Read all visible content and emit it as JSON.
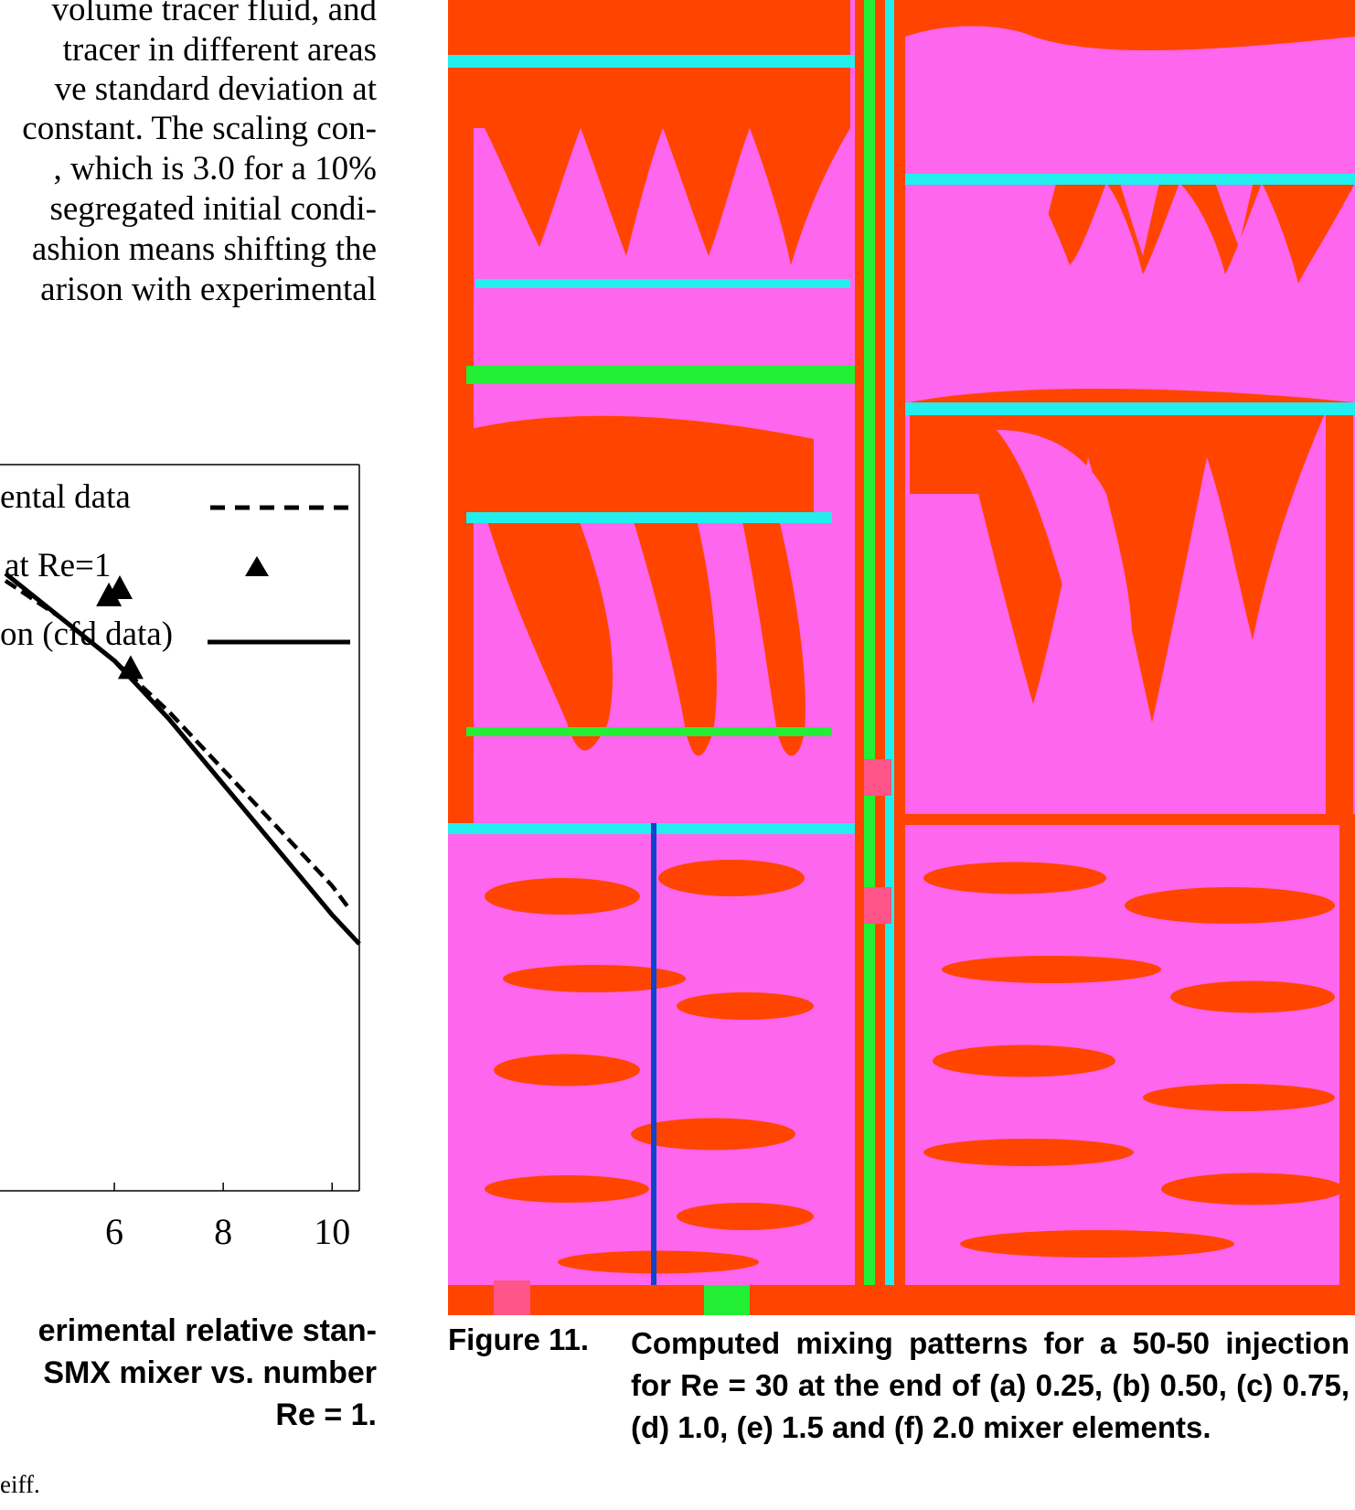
{
  "body_text": {
    "lines": [
      "volume tracer fluid, and",
      "tracer in different areas",
      "ve standard deviation at",
      "constant. The scaling con-",
      ", which is 3.0 for a 10%",
      "segregated initial condi-",
      "ashion means shifting the",
      "arison with experimental"
    ]
  },
  "chart_data": {
    "type": "line",
    "title": "",
    "xlabel": "",
    "ylabel": "",
    "xlim": [
      3.9,
      10.5
    ],
    "x_ticks": [
      6,
      8,
      10
    ],
    "x_tick_labels": [
      "6",
      "8",
      "10"
    ],
    "grid": false,
    "legend_position": "top-right",
    "legend": [
      {
        "label": "ental data",
        "style": "dashed line"
      },
      {
        "label": "at Re=1",
        "style": "triangle markers"
      },
      {
        "label": "on (cfd data)",
        "style": "solid line"
      }
    ],
    "series": [
      {
        "name": "ental data",
        "style": "dashed",
        "x": [
          4.0,
          5.0,
          6.0,
          7.0,
          8.0,
          9.0,
          10.0,
          10.3
        ],
        "y": [
          0.84,
          0.79,
          0.73,
          0.66,
          0.58,
          0.5,
          0.42,
          0.39
        ]
      },
      {
        "name": "at Re=1",
        "style": "triangle",
        "x": [
          5.9,
          6.1,
          6.3
        ],
        "y": [
          0.82,
          0.83,
          0.72
        ]
      },
      {
        "name": "on (cfd data)",
        "style": "solid",
        "x": [
          4.0,
          5.0,
          6.0,
          7.0,
          8.0,
          9.0,
          10.0,
          10.5
        ],
        "y": [
          0.85,
          0.79,
          0.73,
          0.65,
          0.56,
          0.47,
          0.38,
          0.34
        ]
      }
    ]
  },
  "figure10": {
    "caption_lines": [
      "erimental relative stan-",
      "SMX mixer vs. number",
      "Re = 1."
    ],
    "credit": "eiff."
  },
  "figure11": {
    "label": "Figure 11.",
    "text": "Computed mixing patterns for a 50-50 injection for Re = 30 at the end of (a) 0.25, (b) 0.50, (c) 0.75, (d) 1.0, (e) 1.5 and (f) 2.0 mixer elements.",
    "panel_count": 6,
    "colors": {
      "background_fluid": "#ff66ee",
      "tracer_fluid": "#ff4400",
      "interface_green": "#22ee33",
      "interface_cyan": "#22eeee"
    }
  }
}
